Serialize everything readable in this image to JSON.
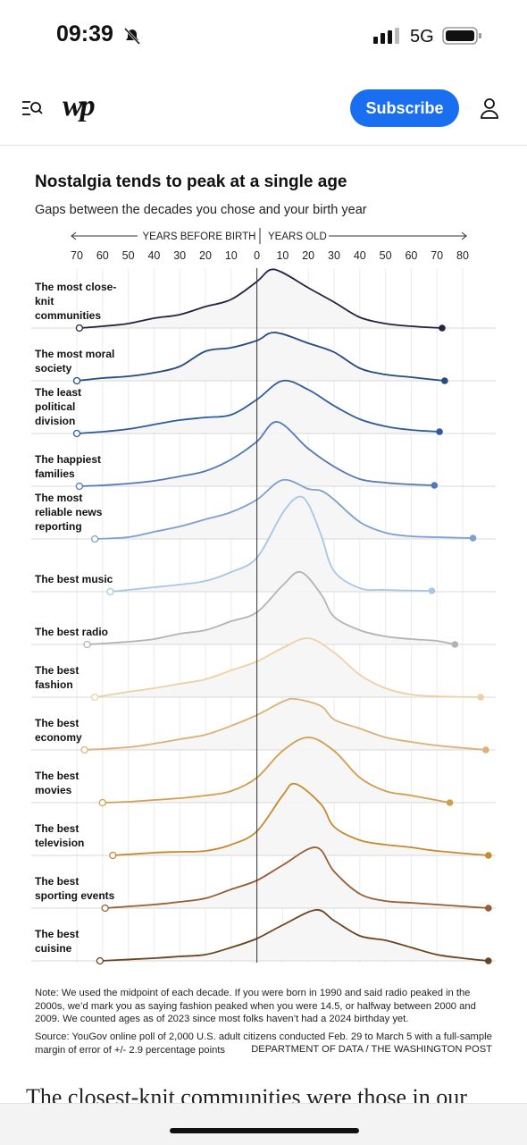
{
  "status_bar": {
    "time": "09:39",
    "network": "5G"
  },
  "header": {
    "logo": "wp",
    "subscribe": "Subscribe"
  },
  "chart_data": {
    "type": "ridgeline",
    "title": "Nostalgia tends to peak at a single age",
    "subtitle": "Gaps between the decades you chose and your birth year",
    "x_label_left": "YEARS BEFORE BIRTH",
    "x_label_right": "YEARS OLD",
    "xlim": [
      -70,
      80
    ],
    "xticks": [
      {
        "value": -70,
        "label": "70"
      },
      {
        "value": -60,
        "label": "60"
      },
      {
        "value": -50,
        "label": "50"
      },
      {
        "value": -40,
        "label": "40"
      },
      {
        "value": -30,
        "label": "30"
      },
      {
        "value": -20,
        "label": "20"
      },
      {
        "value": -10,
        "label": "10"
      },
      0,
      10,
      20,
      30,
      40,
      50,
      60,
      70,
      80
    ],
    "grid": true,
    "series": [
      {
        "name": "The most close-knit communities",
        "color": "#28223f",
        "x": [
          -69,
          -60,
          -50,
          -40,
          -30,
          -20,
          -10,
          0,
          5,
          10,
          20,
          30,
          40,
          50,
          60,
          72
        ],
        "values": [
          0,
          2,
          5,
          11,
          15,
          24,
          32,
          52,
          65,
          62,
          45,
          29,
          12,
          5,
          2,
          0
        ]
      },
      {
        "name": "The most moral society",
        "color": "#254a80",
        "x": [
          -70,
          -60,
          -50,
          -40,
          -30,
          -20,
          -10,
          0,
          7,
          20,
          30,
          40,
          50,
          60,
          73
        ],
        "values": [
          0,
          3,
          5,
          9,
          16,
          33,
          37,
          45,
          54,
          42,
          32,
          14,
          7,
          4,
          0
        ]
      },
      {
        "name": "The least political division",
        "color": "#2d5b9c",
        "x": [
          -70,
          -60,
          -50,
          -40,
          -30,
          -20,
          -10,
          0,
          10,
          20,
          30,
          40,
          50,
          60,
          71
        ],
        "values": [
          0,
          2,
          5,
          10,
          15,
          18,
          21,
          38,
          59,
          49,
          31,
          16,
          8,
          4,
          2
        ]
      },
      {
        "name": "The happiest families",
        "color": "#5378b3",
        "x": [
          -69,
          -60,
          -50,
          -40,
          -30,
          -20,
          -10,
          0,
          8,
          20,
          30,
          40,
          50,
          60,
          69
        ],
        "values": [
          0,
          1,
          3,
          6,
          11,
          17,
          30,
          50,
          72,
          42,
          22,
          8,
          4,
          2,
          1
        ]
      },
      {
        "name": "The most reliable news reporting",
        "color": "#7e9fcf",
        "x": [
          -63,
          -50,
          -40,
          -30,
          -20,
          -10,
          0,
          10,
          20,
          25,
          30,
          40,
          50,
          60,
          70,
          84
        ],
        "values": [
          0,
          2,
          8,
          14,
          22,
          30,
          44,
          66,
          56,
          54,
          44,
          19,
          7,
          3,
          2,
          1
        ]
      },
      {
        "name": "The best music",
        "color": "#a8c7e6",
        "x": [
          -57,
          -50,
          -40,
          -30,
          -20,
          -10,
          0,
          10,
          16,
          20,
          25,
          30,
          40,
          50,
          68
        ],
        "values": [
          0,
          2,
          5,
          8,
          12,
          22,
          38,
          88,
          106,
          98,
          63,
          23,
          4,
          2,
          1
        ]
      },
      {
        "name": "The best radio",
        "color": "#b3b3b3",
        "x": [
          -66,
          -50,
          -40,
          -30,
          -20,
          -10,
          0,
          10,
          17,
          25,
          30,
          40,
          50,
          60,
          70,
          77
        ],
        "values": [
          0,
          3,
          6,
          12,
          16,
          26,
          36,
          66,
          81,
          56,
          31,
          16,
          9,
          6,
          4,
          0
        ]
      },
      {
        "name": "The best fashion",
        "color": "#efd0a5",
        "x": [
          -63,
          -50,
          -40,
          -30,
          -20,
          -10,
          0,
          10,
          20,
          30,
          40,
          50,
          60,
          70,
          87
        ],
        "values": [
          0,
          6,
          10,
          15,
          20,
          30,
          40,
          55,
          66,
          50,
          25,
          10,
          3,
          1,
          0
        ]
      },
      {
        "name": "The best economy",
        "color": "#dcb179",
        "x": [
          -67,
          -50,
          -40,
          -30,
          -20,
          -10,
          0,
          10,
          15,
          25,
          30,
          40,
          50,
          60,
          70,
          89
        ],
        "values": [
          0,
          3,
          7,
          12,
          17,
          27,
          39,
          54,
          57,
          49,
          34,
          24,
          14,
          9,
          5,
          0
        ]
      },
      {
        "name": "The best movies",
        "color": "#d29f4f",
        "x": [
          -60,
          -50,
          -40,
          -30,
          -20,
          -10,
          0,
          10,
          20,
          30,
          40,
          50,
          60,
          75
        ],
        "values": [
          0,
          1,
          3,
          5,
          8,
          13,
          28,
          58,
          73,
          58,
          28,
          13,
          8,
          0
        ]
      },
      {
        "name": "The best television",
        "color": "#c68a30",
        "x": [
          -56,
          -40,
          -30,
          -20,
          -10,
          0,
          10,
          15,
          25,
          30,
          40,
          50,
          60,
          70,
          90
        ],
        "values": [
          0,
          3,
          4,
          5,
          12,
          27,
          67,
          80,
          57,
          32,
          17,
          12,
          9,
          5,
          0
        ]
      },
      {
        "name": "The best sporting events",
        "color": "#985d33",
        "x": [
          -59,
          -40,
          -30,
          -20,
          -10,
          0,
          10,
          23,
          30,
          40,
          50,
          60,
          70,
          90
        ],
        "values": [
          0,
          4,
          7,
          11,
          21,
          31,
          48,
          68,
          41,
          16,
          8,
          6,
          4,
          0
        ]
      },
      {
        "name": "The best cuisine",
        "color": "#6a4320",
        "x": [
          -61,
          -40,
          -30,
          -20,
          -10,
          0,
          10,
          23,
          30,
          40,
          50,
          60,
          70,
          80,
          90
        ],
        "values": [
          0,
          3,
          5,
          7,
          15,
          25,
          40,
          57,
          45,
          28,
          23,
          15,
          7,
          3,
          0
        ]
      }
    ],
    "note": "Note: We used the midpoint of each decade. If you were born in 1990 and said radio peaked in the 2000s, we’d mark you as saying fashion peaked when you were 14.5, or halfway between 2000 and 2009. We counted ages as of 2023 since most folks haven’t had a 2024 birthday yet.",
    "source": "Source: YouGov online poll of 2,000 U.S. adult citizens conducted Feb. 29 to March 5 with a full-sample margin of error of +/- 2.9 percentage points",
    "credit": "DEPARTMENT OF DATA / THE WASHINGTON POST"
  },
  "article_text": "The closest-knit communities were those in our"
}
